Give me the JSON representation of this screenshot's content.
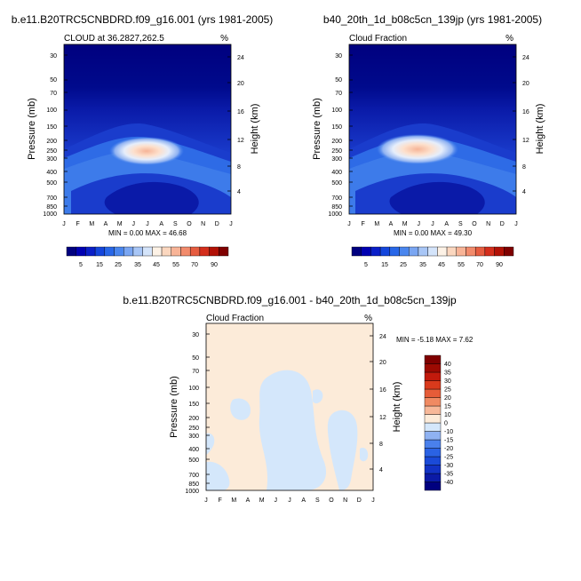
{
  "chart_data": [
    {
      "type": "heatmap",
      "panel_title": "b.e11.B20TRC5CNBDRD.f09_g16.001 (yrs 1981-2005)",
      "left_label": "CLOUD at 36.2827,262.5",
      "right_label": "%",
      "ylabel": "Pressure (mb)",
      "ylabel_right": "Height (km)",
      "x_ticks": [
        "J",
        "F",
        "M",
        "A",
        "M",
        "J",
        "J",
        "A",
        "S",
        "O",
        "N",
        "D",
        "J"
      ],
      "y_ticks": [
        "30",
        "50",
        "70",
        "100",
        "150",
        "200",
        "250",
        "300",
        "400",
        "500",
        "700",
        "850",
        "1000"
      ],
      "y_ticks_right": [
        "24",
        "20",
        "16",
        "12",
        "8",
        "4"
      ],
      "stats": "MIN =  0.00 MAX =  46.68",
      "colorbar_labels": [
        "5",
        "15",
        "25",
        "35",
        "45",
        "55",
        "70",
        "90"
      ]
    },
    {
      "type": "heatmap",
      "panel_title": "b40_20th_1d_b08c5cn_139jp (yrs 1981-2005)",
      "left_label": "Cloud Fraction",
      "right_label": "%",
      "ylabel": "Pressure (mb)",
      "ylabel_right": "Height (km)",
      "x_ticks": [
        "J",
        "F",
        "M",
        "A",
        "M",
        "J",
        "J",
        "A",
        "S",
        "O",
        "N",
        "D",
        "J"
      ],
      "y_ticks": [
        "30",
        "50",
        "70",
        "100",
        "150",
        "200",
        "250",
        "300",
        "400",
        "500",
        "700",
        "850",
        "1000"
      ],
      "y_ticks_right": [
        "24",
        "20",
        "16",
        "12",
        "8",
        "4"
      ],
      "stats": "MIN =  0.00 MAX =  49.30",
      "colorbar_labels": [
        "5",
        "15",
        "25",
        "35",
        "45",
        "55",
        "70",
        "90"
      ]
    },
    {
      "type": "heatmap",
      "panel_title": "b.e11.B20TRC5CNBDRD.f09_g16.001 - b40_20th_1d_b08c5cn_139jp",
      "left_label": "Cloud Fraction",
      "right_label": "%",
      "ylabel": "Pressure (mb)",
      "ylabel_right": "Height (km)",
      "x_ticks": [
        "J",
        "F",
        "M",
        "A",
        "M",
        "J",
        "J",
        "A",
        "S",
        "O",
        "N",
        "D",
        "J"
      ],
      "y_ticks": [
        "30",
        "50",
        "70",
        "100",
        "150",
        "200",
        "250",
        "300",
        "400",
        "500",
        "700",
        "850",
        "1000"
      ],
      "y_ticks_right": [
        "24",
        "20",
        "16",
        "12",
        "8",
        "4"
      ],
      "stats": "MIN = -5.18 MAX =  7.62",
      "colorbar_labels": [
        "40",
        "35",
        "30",
        "25",
        "20",
        "15",
        "10",
        "0",
        "-10",
        "-15",
        "-20",
        "-25",
        "-30",
        "-35",
        "-40"
      ]
    }
  ],
  "colors": {
    "seq": [
      "#00007f",
      "#0000b2",
      "#0a1fc8",
      "#1446dc",
      "#2867e8",
      "#4a86ee",
      "#7aa6f2",
      "#a8c6f6",
      "#d4e4fa",
      "#fdf2e6",
      "#fbd7bf",
      "#f8b497",
      "#f28b6c",
      "#e65c40",
      "#d42e1c",
      "#b21106",
      "#7f0000"
    ],
    "diff": [
      "#00007f",
      "#0b1aa6",
      "#1232c4",
      "#1a4ad8",
      "#2a62e4",
      "#4a80ec",
      "#8fb2f2",
      "#d4e7fb",
      "#fcebd9",
      "#f7b899",
      "#f08a62",
      "#e65c38",
      "#d93a1c",
      "#c21a0c",
      "#9c0a02",
      "#7f0000"
    ]
  }
}
